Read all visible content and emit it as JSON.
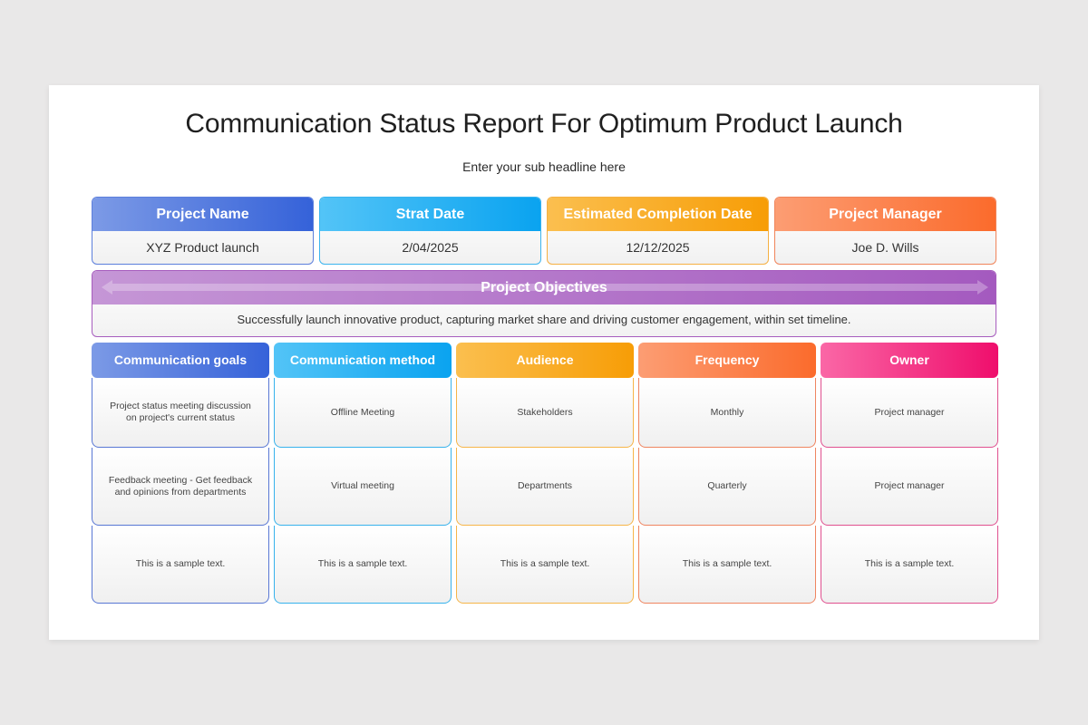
{
  "title": "Communication Status Report For Optimum Product Launch",
  "subtitle": "Enter your sub headline here",
  "info_cards": [
    {
      "label": "Project Name",
      "value": "XYZ Product launch",
      "color_from": "#7c9ae6",
      "color_to": "#3562d9",
      "border": "#5c7fdc"
    },
    {
      "label": "Strat Date",
      "value": "2/04/2025",
      "color_from": "#53c4f7",
      "color_to": "#0aa3f0",
      "border": "#3bb4ee"
    },
    {
      "label": "Estimated Completion Date",
      "value": "12/12/2025",
      "color_from": "#fbbf4f",
      "color_to": "#f79d06",
      "border": "#f5b043"
    },
    {
      "label": "Project Manager",
      "value": "Joe D. Wills",
      "color_from": "#fc9d73",
      "color_to": "#fb6b2c",
      "border": "#f0845a"
    }
  ],
  "objectives": {
    "label": "Project Objectives",
    "text": "Successfully launch innovative product, capturing market share and driving customer engagement, within set timeline.",
    "color": "#a75dbe"
  },
  "columns": [
    {
      "label": "Communication goals",
      "color_from": "#7c9ae6",
      "color_to": "#3562d9",
      "border": "#5877d4"
    },
    {
      "label": "Communication method",
      "color_from": "#53c4f7",
      "color_to": "#0aa3f0",
      "border": "#37b2ec"
    },
    {
      "label": "Audience",
      "color_from": "#fbbf4f",
      "color_to": "#f79d06",
      "border": "#f6b548"
    },
    {
      "label": "Frequency",
      "color_from": "#fc9d73",
      "color_to": "#fb6b2c",
      "border": "#ef8560"
    },
    {
      "label": "Owner",
      "color_from": "#fa67a6",
      "color_to": "#ef0e6c",
      "border": "#e0508f"
    }
  ],
  "rows": [
    [
      "Project status meeting discussion on project's current status",
      "Offline Meeting",
      "Stakeholders",
      "Monthly",
      "Project manager"
    ],
    [
      "Feedback meeting - Get feedback and opinions from departments",
      "Virtual meeting",
      "Departments",
      "Quarterly",
      "Project manager"
    ],
    [
      "This is a sample text.",
      "This is a sample text.",
      "This is a sample text.",
      "This is a sample text.",
      "This is a sample text."
    ]
  ]
}
